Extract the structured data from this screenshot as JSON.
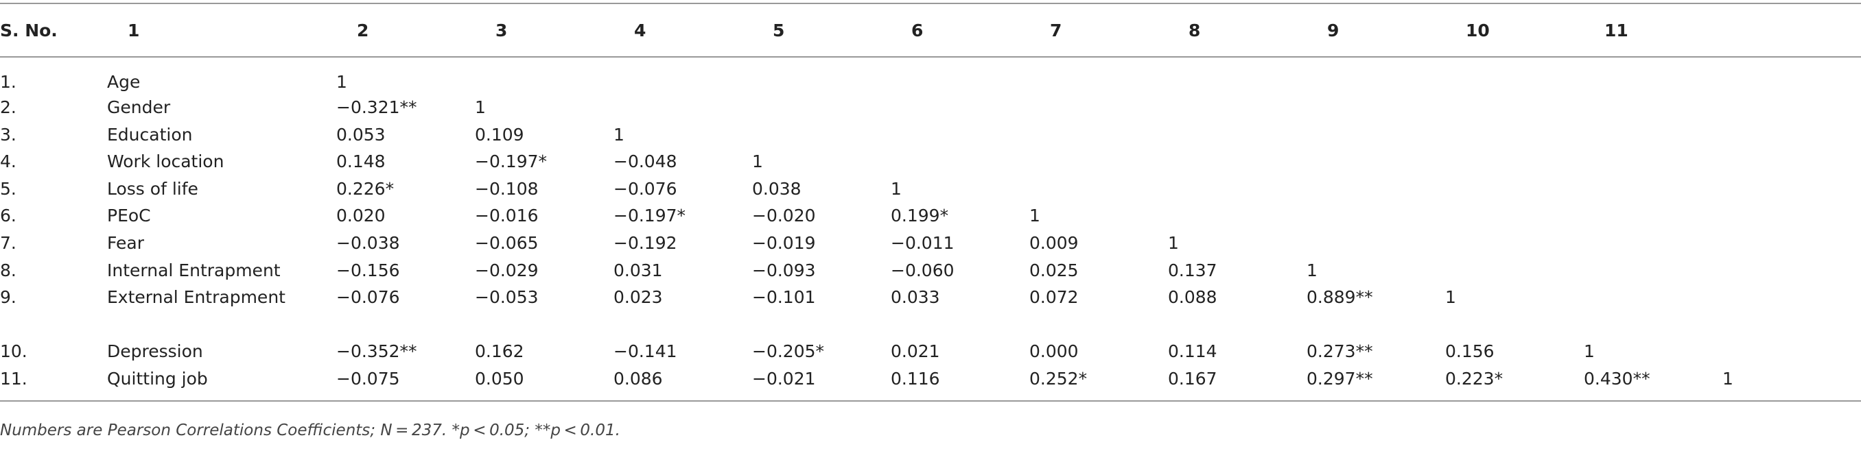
{
  "table": {
    "header": [
      "S. No.",
      "1",
      "2",
      "3",
      "4",
      "5",
      "6",
      "7",
      "8",
      "9",
      "10",
      "11"
    ],
    "rows": [
      [
        "1.",
        "Age",
        "1"
      ],
      [
        "2.",
        "Gender",
        "−0.321**",
        "1"
      ],
      [
        "3.",
        "Education",
        "0.053",
        "0.109",
        "1"
      ],
      [
        "4.",
        "Work location",
        "0.148",
        "−0.197*",
        "−0.048",
        "1"
      ],
      [
        "5.",
        "Loss of life",
        "0.226*",
        "−0.108",
        "−0.076",
        "0.038",
        "1"
      ],
      [
        "6.",
        "PEoC",
        "0.020",
        "−0.016",
        "−0.197*",
        "−0.020",
        "0.199*",
        "1"
      ],
      [
        "7.",
        "Fear",
        "−0.038",
        "−0.065",
        "−0.192",
        "−0.019",
        "−0.011",
        "0.009",
        "1"
      ],
      [
        "8.",
        "Internal Entrapment",
        "−0.156",
        "−0.029",
        "0.031",
        "−0.093",
        "−0.060",
        "0.025",
        "0.137",
        "1"
      ],
      [
        "9.",
        "External Entrapment",
        "−0.076",
        "−0.053",
        "0.023",
        "−0.101",
        "0.033",
        "0.072",
        "0.088",
        "0.889**",
        "1"
      ],
      [
        "10.",
        "Depression",
        "−0.352**",
        "0.162",
        "−0.141",
        "−0.205*",
        "0.021",
        "0.000",
        "0.114",
        "0.273**",
        "0.156",
        "1"
      ],
      [
        "11.",
        "Quitting job",
        "−0.075",
        "0.050",
        "0.086",
        "−0.021",
        "0.116",
        "0.252*",
        "0.167",
        "0.297**",
        "0.223*",
        "0.430**",
        "1"
      ]
    ]
  },
  "footnote": "Numbers are Pearson Correlations Coefficients; N = 237. *p < 0.05; **p < 0.01."
}
